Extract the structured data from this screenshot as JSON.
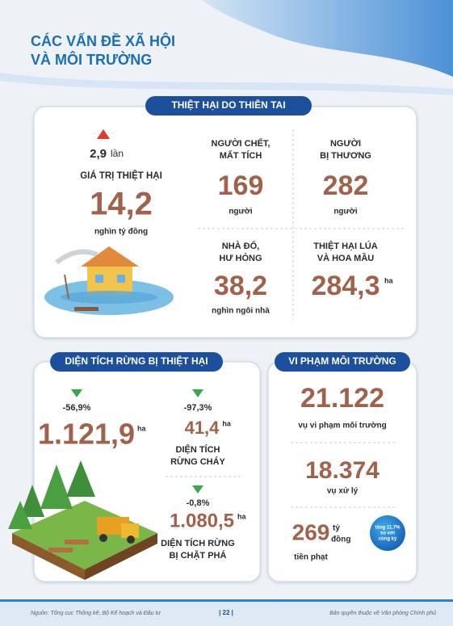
{
  "header": {
    "title": [
      "CÁC VẤN ĐỀ XÃ HỘI",
      "VÀ MÔI TRƯỜNG"
    ]
  },
  "disaster": {
    "title": "THIỆT HẠI DO THIÊN TAI",
    "change": {
      "value": "2,9",
      "unit": "lần"
    },
    "damage": {
      "label": "GIÁ TRỊ THIỆT HẠI",
      "value": "14,2",
      "unit": "nghìn tỷ đồng"
    },
    "items": [
      {
        "label": [
          "NGƯỜI CHẾT,",
          "MẤT TÍCH"
        ],
        "value": "169",
        "unit": "người"
      },
      {
        "label": [
          "NGƯỜI",
          "BỊ THƯƠNG"
        ],
        "value": "282",
        "unit": "người"
      },
      {
        "label": [
          "NHÀ ĐỔ,",
          "HƯ HỎNG"
        ],
        "value": "38,2",
        "unit": "nghìn ngôi nhà"
      },
      {
        "label": [
          "THIỆT HẠI LÚA",
          "VÀ HOA MẦU"
        ],
        "value": "284,3",
        "unit": "ha"
      }
    ]
  },
  "forest": {
    "title": "DIỆN TÍCH RỪNG BỊ THIỆT HẠI",
    "total": {
      "change": "-56,9%",
      "value": "1.121,9",
      "unit": "ha"
    },
    "items": [
      {
        "change": "-97,3%",
        "value": "41,4",
        "unit": "ha",
        "label": [
          "DIỆN TÍCH",
          "RỪNG CHÁY"
        ]
      },
      {
        "change": "-0,8%",
        "value": "1.080,5",
        "unit": "ha",
        "label": [
          "DIỆN TÍCH RỪNG",
          "BỊ CHẶT PHÁ"
        ]
      }
    ]
  },
  "violations": {
    "title": "VI PHẠM MÔI TRƯỜNG",
    "items": [
      {
        "value": "21.122",
        "label": "vụ vi phạm môi trường"
      },
      {
        "value": "18.374",
        "label": "vụ xử lý"
      }
    ],
    "fine": {
      "value": "269",
      "unit": [
        "tỷ",
        "đồng"
      ],
      "label": "tiền phạt",
      "badge": [
        "tăng 11,7%",
        "so với",
        "cùng kỳ"
      ]
    }
  },
  "footer": {
    "source": "Nguồn: Tổng cục Thống kê; Bộ Kế hoạch và Đầu tư",
    "page": "| 22 |",
    "copyright": "Bản quyền thuộc về Văn phòng Chính phủ"
  }
}
